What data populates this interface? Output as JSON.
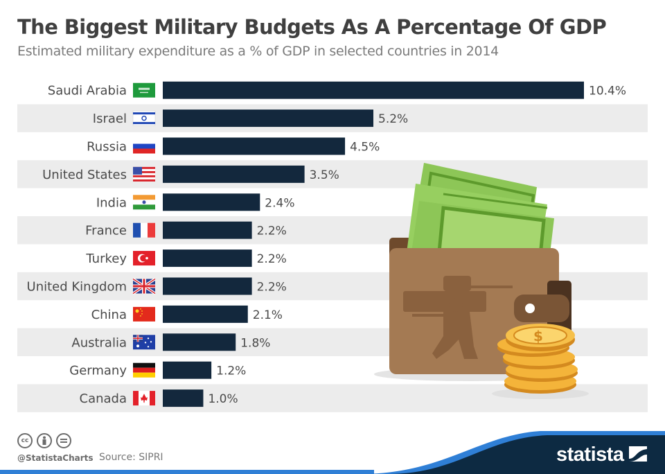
{
  "header": {
    "title": "The Biggest Military Budgets As A Percentage Of GDP",
    "subtitle": "Estimated military expenditure as a % of GDP in selected countries in 2014"
  },
  "chart_data": {
    "type": "bar",
    "orientation": "horizontal",
    "title": "The Biggest Military Budgets As A Percentage Of GDP",
    "subtitle": "Estimated military expenditure as a % of GDP in selected countries in 2014",
    "xlabel": "",
    "ylabel": "",
    "unit": "%",
    "xlim": [
      0,
      10.4
    ],
    "grid": false,
    "categories": [
      "Saudi Arabia",
      "Israel",
      "Russia",
      "United States",
      "India",
      "France",
      "Turkey",
      "United Kingdom",
      "China",
      "Australia",
      "Germany",
      "Canada"
    ],
    "values": [
      10.4,
      5.2,
      4.5,
      3.5,
      2.4,
      2.2,
      2.2,
      2.2,
      2.1,
      1.8,
      1.2,
      1.0
    ],
    "labels": [
      "10.4%",
      "5.2%",
      "4.5%",
      "3.5%",
      "2.4%",
      "2.2%",
      "2.2%",
      "2.2%",
      "2.1%",
      "1.8%",
      "1.2%",
      "1.0%"
    ],
    "flags": [
      "saudi-arabia",
      "israel",
      "russia",
      "united-states",
      "india",
      "france",
      "turkey",
      "united-kingdom",
      "china",
      "australia",
      "germany",
      "canada"
    ],
    "bar_color": "#13283d",
    "stripe_color": "#ececec"
  },
  "illustration": {
    "name": "wallet-with-money-and-coins",
    "colors": {
      "wallet": "#a47a53",
      "wallet_dark": "#7a5536",
      "bills": "#8bc34a",
      "bills_dark": "#5d9a2c",
      "coins": "#f4b43a"
    }
  },
  "footer": {
    "license_icons": [
      "cc-icon",
      "by-icon",
      "nd-icon"
    ],
    "cc_text": "cc",
    "handle": "@StatistaCharts",
    "source": "Source: SIPRI",
    "brand": "statista",
    "brand_colors": {
      "dark": "#0d2a42",
      "accent": "#2f7fd6"
    }
  }
}
